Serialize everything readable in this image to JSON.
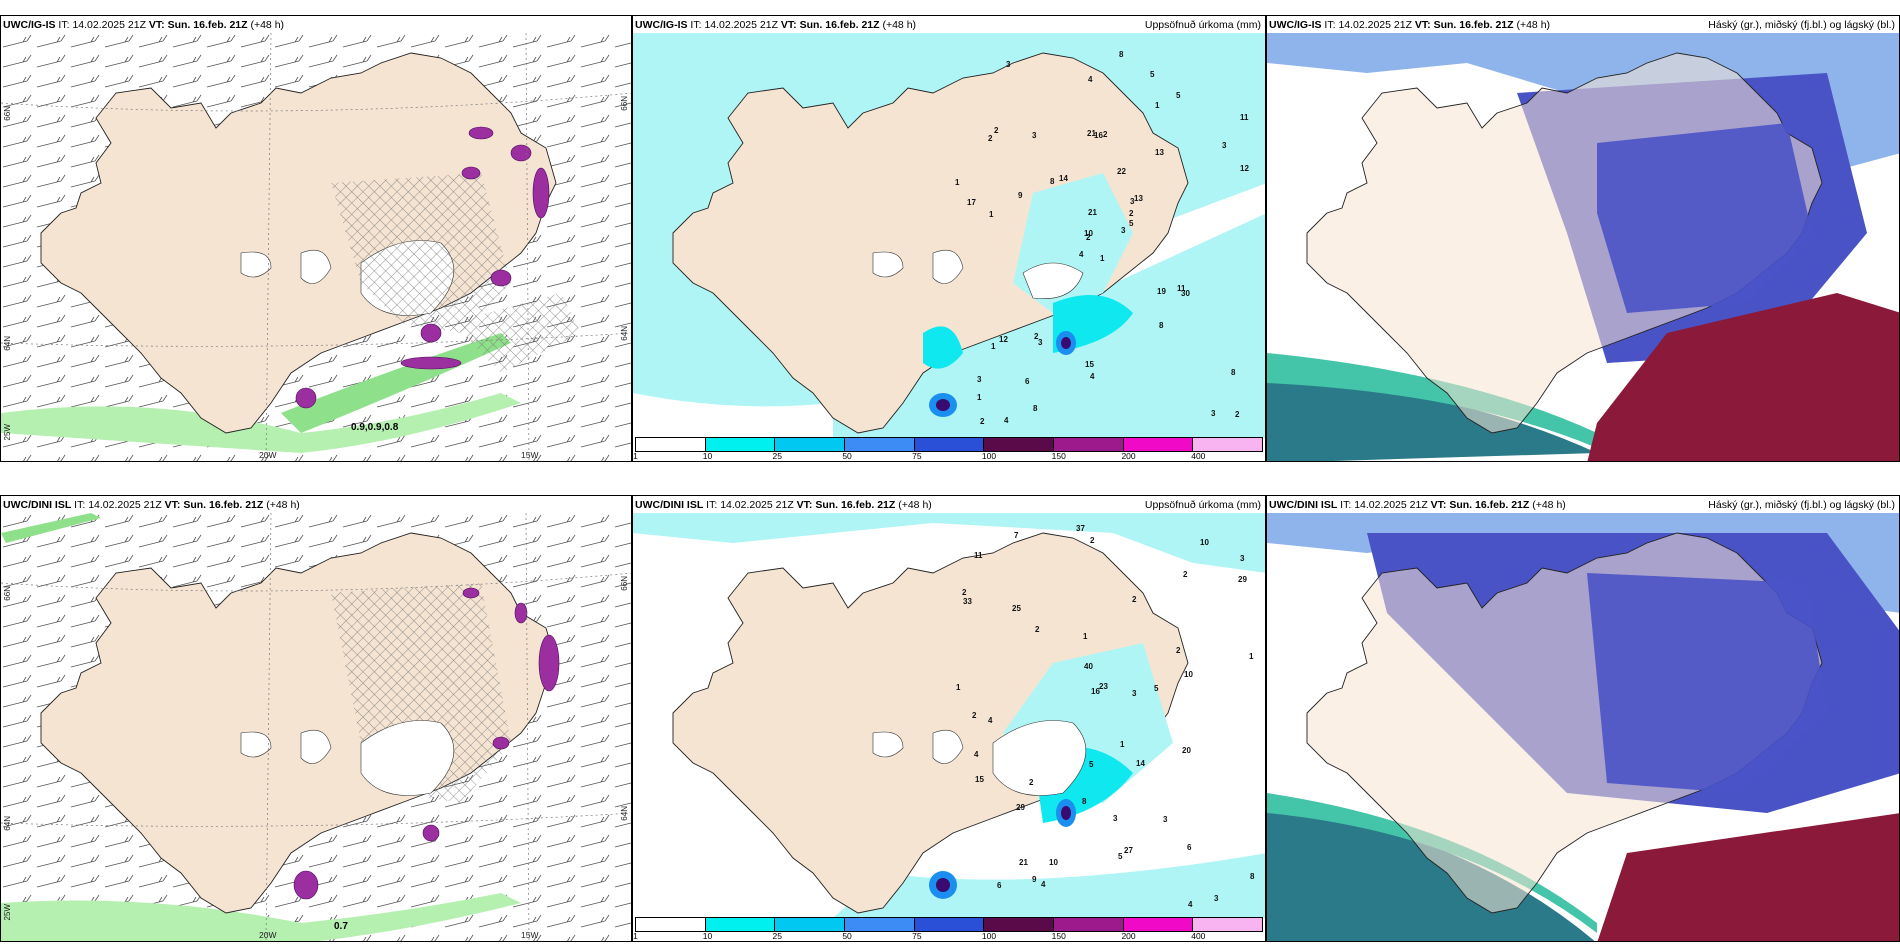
{
  "rows": [
    {
      "model": "UWC/IG-IS",
      "it_label": "IT:",
      "it_value": "14.02.2025 21Z",
      "vt_label": "VT:",
      "vt_value": "Sun. 16.feb. 21Z",
      "lead": "(+48 h)",
      "p1_highlight": "0.9,0.9,0.8",
      "p2_numbers": [
        "1",
        "2",
        "2",
        "3",
        "3",
        "3",
        "5",
        "2",
        "1",
        "3",
        "3",
        "2",
        "1",
        "11",
        "4",
        "13",
        "4",
        "21",
        "22",
        "12",
        "14",
        "1",
        "6",
        "16",
        "13",
        "30",
        "2",
        "4",
        "17",
        "19",
        "12",
        "10",
        "15",
        "21",
        "3",
        "5",
        "2",
        "3",
        "8",
        "11",
        "8",
        "8",
        "9",
        "8",
        "8",
        "1",
        "2",
        "2",
        "4",
        "5",
        "1",
        "3"
      ]
    },
    {
      "model": "UWC/DINI ISL",
      "it_label": "IT:",
      "it_value": "14.02.2025 21Z",
      "vt_label": "VT:",
      "vt_value": "Sun. 16.feb. 21Z",
      "lead": "(+48 h)",
      "p1_highlight": "0.7",
      "p2_numbers": [
        "1",
        "2",
        "2",
        "3",
        "2",
        "3",
        "4",
        "2",
        "1",
        "10",
        "23",
        "20",
        "37",
        "33",
        "25",
        "29",
        "27",
        "2",
        "1",
        "8",
        "3",
        "6",
        "29",
        "40",
        "21",
        "16",
        "14",
        "7",
        "4",
        "5",
        "4",
        "4",
        "3",
        "6",
        "9",
        "15",
        "10",
        "11",
        "10",
        "2",
        "3",
        "5",
        "8",
        "1",
        "5",
        "2",
        "2"
      ]
    }
  ],
  "panel2_right_label": "Uppsöfnuð úrkoma (mm)",
  "panel3_right_label": "Háský (gr.), miðský (fj.bl.) og lágský (bl.)",
  "axes": {
    "lat_labels": [
      "66N",
      "64N",
      "65N"
    ],
    "lat_right": [
      "66N",
      "64N"
    ],
    "lon_labels": [
      "20W",
      "15W"
    ],
    "lon_left": "25W"
  },
  "legend": {
    "ticks": [
      "1",
      "10",
      "25",
      "50",
      "75",
      "100",
      "150",
      "200",
      "400"
    ],
    "colors": [
      "#ffffff",
      "#00f0f0",
      "#00c8f0",
      "#3d8cf5",
      "#2a50d8",
      "#5a0a48",
      "#9c1a8c",
      "#f00ac8",
      "#f8b4f0"
    ]
  },
  "colors": {
    "land": "#f5e4d2",
    "sea": "#ffffff",
    "precip_light": "#aff5f5",
    "precip_cyan": "#10e8f0",
    "precip_blue": "#1a8ff0",
    "precip_dark": "#3b0a6e",
    "cloud_high": "#6b8fd6",
    "cloud_mid": "#4a53c6",
    "cloud_low": "#8b1a3a",
    "cloud_lowsea": "#2a7a8a",
    "wind_green": "#b6f0b0",
    "hatch": "#888888",
    "purple": "#9b2fa0"
  }
}
